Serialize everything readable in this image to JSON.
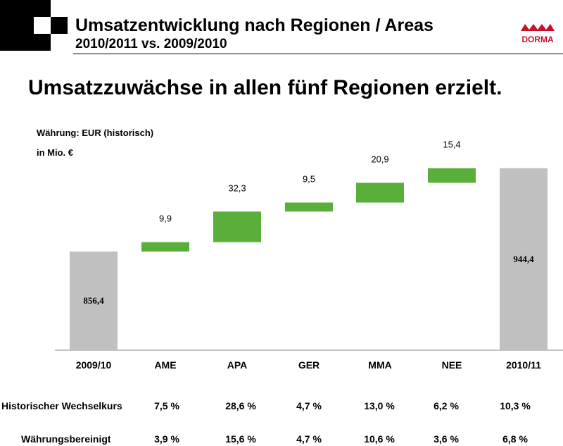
{
  "header": {
    "title": "Umsatzentwicklung nach Regionen / Areas",
    "subtitle": "2010/2011 vs. 2009/2010",
    "brand_text": "DORMA",
    "brand_color": "#c8102e"
  },
  "headline": "Umsatzzuwächse in allen fünf Regionen erzielt.",
  "units": {
    "currency": "Währung: EUR (historisch)",
    "scale": "in Mio. €"
  },
  "colors": {
    "total_bar": "#c0c0c0",
    "delta_bar": "#5aaf3a"
  },
  "chart_data": {
    "type": "bar",
    "subtype": "waterfall",
    "categories": [
      "2009/10",
      "AME",
      "APA",
      "GER",
      "MMA",
      "NEE",
      "2010/11"
    ],
    "start": {
      "category": "2009/10",
      "value": 856.4,
      "label": "856,4"
    },
    "deltas": [
      {
        "category": "AME",
        "value": 9.9,
        "label": "9,9"
      },
      {
        "category": "APA",
        "value": 32.3,
        "label": "32,3"
      },
      {
        "category": "GER",
        "value": 9.5,
        "label": "9,5"
      },
      {
        "category": "MMA",
        "value": 20.9,
        "label": "20,9"
      },
      {
        "category": "NEE",
        "value": 15.4,
        "label": "15,4"
      }
    ],
    "end": {
      "category": "2010/11",
      "value": 944.4,
      "label": "944,4"
    },
    "grid": false,
    "legend": "none"
  },
  "table": {
    "rows": [
      {
        "label": "Historischer Wechselkurs",
        "values": [
          "7,5 %",
          "28,6 %",
          "4,7 %",
          "13,0 %",
          "6,2 %",
          "10,3 %"
        ]
      },
      {
        "label": "Währungsbereinigt",
        "values": [
          "3,9 %",
          "15,6 %",
          "4,7 %",
          "10,6 %",
          "3,6 %",
          "6,8 %"
        ]
      }
    ]
  }
}
